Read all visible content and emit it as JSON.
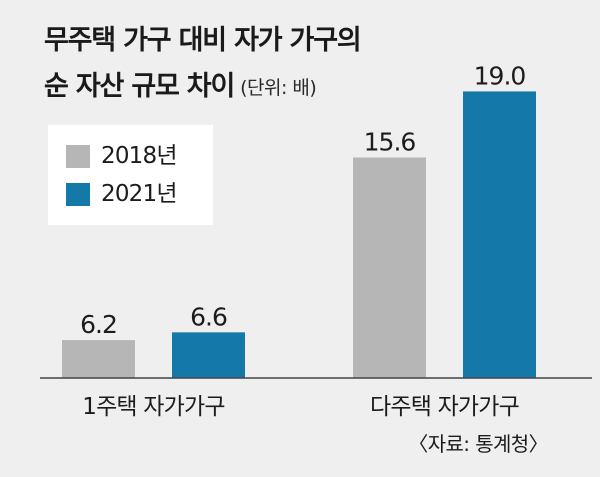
{
  "chart_data": {
    "type": "bar",
    "title_lines": [
      "무주택 가구 대비 자가 가구의",
      "순 자산 규모 차이"
    ],
    "unit_note": "(단위: 배)",
    "categories": [
      "1주택 자가가구",
      "다주택 자가가구"
    ],
    "series": [
      {
        "name": "2018년",
        "values": [
          6.2,
          15.6
        ],
        "color": "#b6b6b6"
      },
      {
        "name": "2021년",
        "values": [
          6.6,
          19.0
        ],
        "color": "#1479a8"
      }
    ],
    "ylim": [
      4.25,
      20
    ],
    "grid": false,
    "legend_position": "top-left"
  },
  "source": "〈자료: 통계청〉",
  "colors": {
    "background": "#efefef",
    "legend_background": "#ffffff",
    "text": "#1c1c1c",
    "baseline": "#444444"
  }
}
